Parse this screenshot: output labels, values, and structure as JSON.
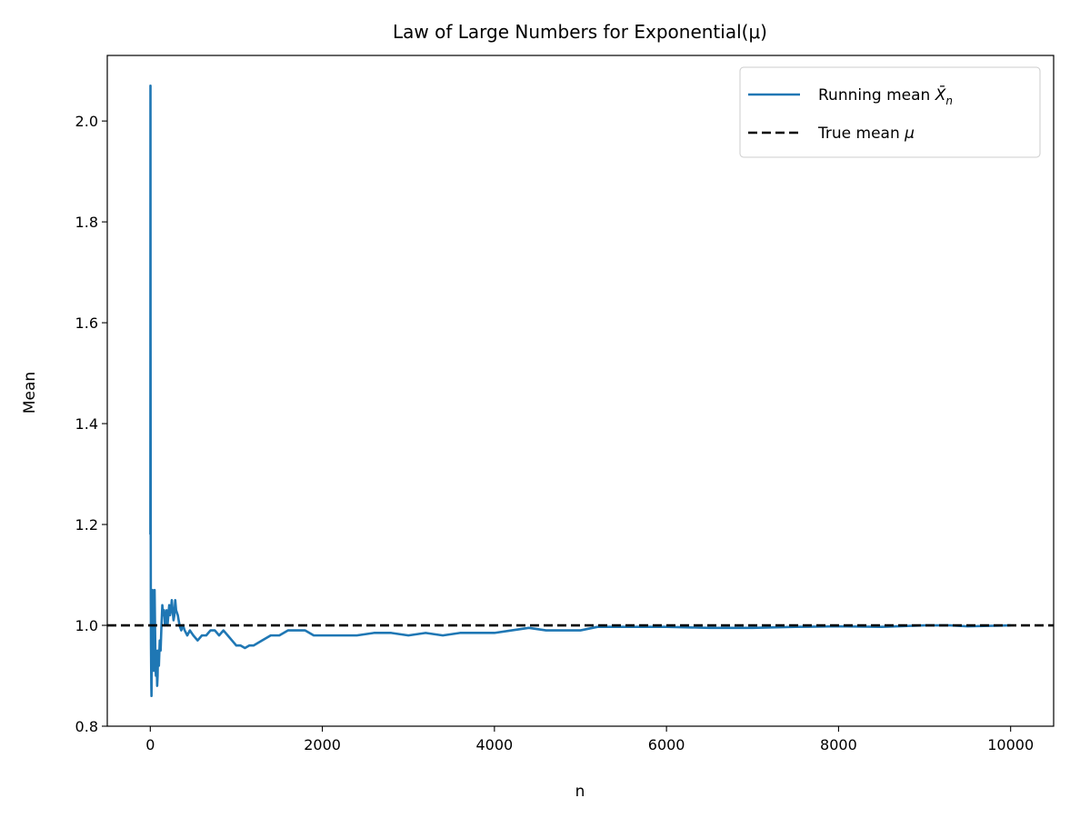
{
  "chart_data": {
    "type": "line",
    "title": "Law of Large Numbers for Exponential(μ)",
    "xlabel": "n",
    "ylabel": "Mean",
    "xlim": [
      -500,
      10500
    ],
    "ylim": [
      0.8,
      2.13
    ],
    "xticks": [
      0,
      2000,
      4000,
      6000,
      8000,
      10000
    ],
    "xtick_labels": [
      "0",
      "2000",
      "4000",
      "6000",
      "8000",
      "10000"
    ],
    "yticks": [
      0.8,
      1.0,
      1.2,
      1.4,
      1.6,
      1.8,
      2.0
    ],
    "ytick_labels": [
      "0.8",
      "1.0",
      "1.2",
      "1.4",
      "1.6",
      "1.8",
      "2.0"
    ],
    "grid": false,
    "legend_position": "top-right",
    "series": [
      {
        "name": "Running mean X̄n",
        "legend_main": "Running mean ",
        "legend_symbol": "X̄",
        "legend_sub": "n",
        "style": "solid",
        "color": "#1f77b4",
        "x": [
          1,
          2,
          3,
          4,
          5,
          6,
          8,
          10,
          12,
          14,
          16,
          18,
          20,
          25,
          30,
          35,
          40,
          45,
          50,
          55,
          60,
          65,
          70,
          75,
          80,
          85,
          90,
          95,
          100,
          110,
          120,
          130,
          140,
          150,
          160,
          170,
          180,
          190,
          200,
          210,
          220,
          230,
          240,
          250,
          260,
          270,
          280,
          290,
          300,
          320,
          340,
          360,
          380,
          400,
          430,
          460,
          500,
          550,
          600,
          650,
          700,
          750,
          800,
          850,
          900,
          950,
          1000,
          1050,
          1100,
          1150,
          1200,
          1300,
          1400,
          1500,
          1600,
          1700,
          1800,
          1900,
          2000,
          2200,
          2400,
          2600,
          2800,
          3000,
          3200,
          3400,
          3600,
          3800,
          4000,
          4200,
          4400,
          4600,
          4800,
          5000,
          5200,
          5500,
          6000,
          6500,
          7000,
          7500,
          8000,
          8500,
          9000,
          9300,
          9500,
          10000
        ],
        "y": [
          1.18,
          2.07,
          1.6,
          1.35,
          1.2,
          1.05,
          0.96,
          0.92,
          0.88,
          0.86,
          0.9,
          0.93,
          0.96,
          1.07,
          1.02,
          0.95,
          0.91,
          0.98,
          1.07,
          1.0,
          0.93,
          0.9,
          0.95,
          0.92,
          0.88,
          0.9,
          0.95,
          0.92,
          0.92,
          0.97,
          0.95,
          1.0,
          1.04,
          1.02,
          1.03,
          1.0,
          1.01,
          1.03,
          1.0,
          1.02,
          1.04,
          1.02,
          1.03,
          1.05,
          1.03,
          1.01,
          1.02,
          1.05,
          1.03,
          1.02,
          1.0,
          0.99,
          1.0,
          0.99,
          0.98,
          0.99,
          0.98,
          0.97,
          0.98,
          0.98,
          0.99,
          0.99,
          0.98,
          0.99,
          0.98,
          0.97,
          0.96,
          0.96,
          0.955,
          0.96,
          0.96,
          0.97,
          0.98,
          0.98,
          0.99,
          0.99,
          0.99,
          0.98,
          0.98,
          0.98,
          0.98,
          0.985,
          0.985,
          0.98,
          0.985,
          0.98,
          0.985,
          0.985,
          0.985,
          0.99,
          0.995,
          0.99,
          0.99,
          0.99,
          0.997,
          0.997,
          0.997,
          0.995,
          0.995,
          0.997,
          0.998,
          0.997,
          1.0,
          1.0,
          0.998,
          1.0
        ]
      },
      {
        "name": "True mean μ",
        "legend_main": "True mean ",
        "legend_symbol": "μ",
        "legend_sub": "",
        "style": "dashed",
        "color": "#000000",
        "constant_y": 1.0
      }
    ]
  }
}
